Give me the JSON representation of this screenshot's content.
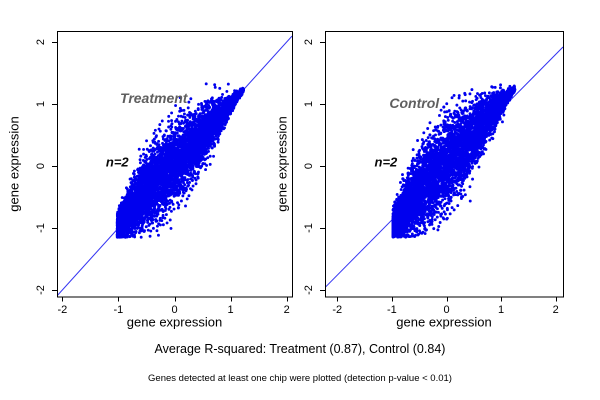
{
  "captions": {
    "r_squared": "Average R-squared: Treatment (0.87), Control (0.84)",
    "detection": "Genes detected at least one chip were plotted (detection p-value < 0.01)"
  },
  "colors": {
    "point": "#0000ee",
    "fit_line": "#3434f2",
    "frame": "#000000",
    "panel_label": "#5f5f5f",
    "n_label": "#0a0a0a",
    "background": "#ffffff"
  },
  "chart_data": [
    {
      "type": "scatter",
      "panel": "treatment",
      "label": "Treatment",
      "n_label": "n=2",
      "r_squared": 0.87,
      "xlabel": "gene expression",
      "ylabel": "gene expression",
      "xlim": [
        -2.095,
        2.095
      ],
      "ylim": [
        -2.105,
        2.177
      ],
      "xticks": [
        -2,
        -1,
        0,
        1,
        2
      ],
      "yticks": [
        -2,
        -1,
        0,
        1,
        2
      ],
      "grid": false,
      "line": {
        "slope": 1.0,
        "intercept": 0.0
      },
      "label_pos": [
        -0.37,
        1.1
      ],
      "n_label_pos": [
        -1.02,
        0.06
      ],
      "cloud": {
        "description": "dense blue comet-shaped cloud of gene expression points hugging the diagonal, dense rounded blob at lower left tapering to a sharp tip at upper right",
        "n": 6500,
        "x_min": -1.02,
        "x_max": 1.23,
        "skew": 1.35,
        "bulge": 0.12,
        "spread": 1.0,
        "seed": 42,
        "point_radius": 1.45
      }
    },
    {
      "type": "scatter",
      "panel": "control",
      "label": "Control",
      "n_label": "n=2",
      "r_squared": 0.84,
      "xlabel": "gene expression",
      "ylabel": "gene expression",
      "xlim": [
        -2.225,
        2.133
      ],
      "ylim": [
        -2.105,
        2.177
      ],
      "xticks": [
        -2,
        -1,
        0,
        1,
        2
      ],
      "yticks": [
        -2,
        -1,
        0,
        1,
        2
      ],
      "grid": false,
      "line": {
        "slope": 0.89,
        "intercept": 0.02
      },
      "label_pos": [
        -0.59,
        1.02
      ],
      "n_label_pos": [
        -1.11,
        0.06
      ],
      "cloud": {
        "description": "dense blue comet-shaped cloud, slightly wider than treatment panel, dense rounded blob at lower left tapering to a sharp tip at upper right",
        "n": 6500,
        "x_min": -0.98,
        "x_max": 1.25,
        "skew": 1.35,
        "bulge": 0.1,
        "spread": 1.1,
        "seed": 1337,
        "point_radius": 1.45
      }
    }
  ]
}
